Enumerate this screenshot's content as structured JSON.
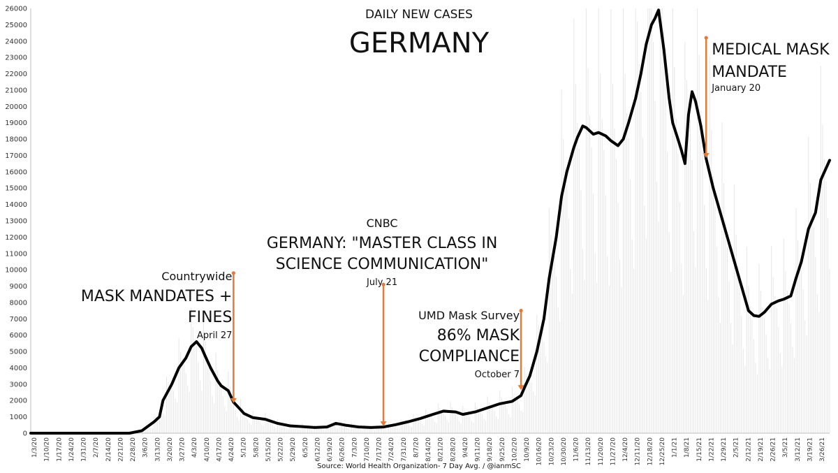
{
  "chart_data": {
    "type": "line",
    "title": "GERMANY",
    "subtitle": "DAILY NEW CASES",
    "source": "Source: World Health Organization- 7 Day Avg. / @ianmSC",
    "xlabel": "",
    "ylabel": "",
    "ylim": [
      0,
      26000
    ],
    "yticks": [
      0,
      1000,
      2000,
      3000,
      4000,
      5000,
      6000,
      7000,
      8000,
      9000,
      10000,
      11000,
      12000,
      13000,
      14000,
      15000,
      16000,
      17000,
      18000,
      19000,
      20000,
      21000,
      22000,
      23000,
      24000,
      25000,
      26000
    ],
    "x_range": [
      "2020-01-03",
      "2021-03-31"
    ],
    "xtick_labels": [
      "1/3/20",
      "1/10/20",
      "1/17/20",
      "1/24/20",
      "1/31/20",
      "2/7/20",
      "2/14/20",
      "2/21/20",
      "2/28/20",
      "3/6/20",
      "3/13/20",
      "3/20/20",
      "3/27/20",
      "4/3/20",
      "4/10/20",
      "4/17/20",
      "4/24/20",
      "5/1/20",
      "5/8/20",
      "5/15/20",
      "5/22/20",
      "5/29/20",
      "6/5/20",
      "6/12/20",
      "6/19/20",
      "6/26/20",
      "7/3/20",
      "7/10/20",
      "7/17/20",
      "7/24/20",
      "7/31/20",
      "8/7/20",
      "8/14/20",
      "8/21/20",
      "8/28/20",
      "9/4/20",
      "9/11/20",
      "9/18/20",
      "9/25/20",
      "10/2/20",
      "10/9/20",
      "10/16/20",
      "10/23/20",
      "10/30/20",
      "11/6/20",
      "11/13/20",
      "11/20/20",
      "11/27/20",
      "12/4/20",
      "12/11/20",
      "12/18/20",
      "12/25/20",
      "1/1/21",
      "1/8/21",
      "1/15/21",
      "1/22/21",
      "1/29/21",
      "2/5/21",
      "2/12/21",
      "2/19/21",
      "2/26/21",
      "3/5/21",
      "3/12/21",
      "3/19/21",
      "3/26/21"
    ],
    "grid": false,
    "series": [
      {
        "name": "",
        "color": "#000000",
        "points": [
          [
            "2020-01-03",
            0
          ],
          [
            "2020-02-28",
            0
          ],
          [
            "2020-03-06",
            150
          ],
          [
            "2020-03-13",
            700
          ],
          [
            "2020-03-16",
            1000
          ],
          [
            "2020-03-18",
            2000
          ],
          [
            "2020-03-23",
            3000
          ],
          [
            "2020-03-27",
            4000
          ],
          [
            "2020-03-31",
            4600
          ],
          [
            "2020-04-03",
            5300
          ],
          [
            "2020-04-06",
            5600
          ],
          [
            "2020-04-09",
            5200
          ],
          [
            "2020-04-11",
            4700
          ],
          [
            "2020-04-14",
            4000
          ],
          [
            "2020-04-18",
            3200
          ],
          [
            "2020-04-20",
            2900
          ],
          [
            "2020-04-24",
            2600
          ],
          [
            "2020-04-27",
            1900
          ],
          [
            "2020-05-03",
            1200
          ],
          [
            "2020-05-08",
            950
          ],
          [
            "2020-05-15",
            850
          ],
          [
            "2020-05-22",
            600
          ],
          [
            "2020-05-29",
            450
          ],
          [
            "2020-06-05",
            400
          ],
          [
            "2020-06-12",
            350
          ],
          [
            "2020-06-19",
            380
          ],
          [
            "2020-06-24",
            600
          ],
          [
            "2020-06-30",
            480
          ],
          [
            "2020-07-07",
            380
          ],
          [
            "2020-07-14",
            350
          ],
          [
            "2020-07-21",
            380
          ],
          [
            "2020-07-28",
            520
          ],
          [
            "2020-08-04",
            700
          ],
          [
            "2020-08-11",
            900
          ],
          [
            "2020-08-18",
            1150
          ],
          [
            "2020-08-24",
            1350
          ],
          [
            "2020-08-31",
            1300
          ],
          [
            "2020-09-04",
            1150
          ],
          [
            "2020-09-11",
            1300
          ],
          [
            "2020-09-18",
            1550
          ],
          [
            "2020-09-25",
            1800
          ],
          [
            "2020-10-02",
            1950
          ],
          [
            "2020-10-07",
            2300
          ],
          [
            "2020-10-09",
            2800
          ],
          [
            "2020-10-12",
            3500
          ],
          [
            "2020-10-16",
            5000
          ],
          [
            "2020-10-20",
            7000
          ],
          [
            "2020-10-23",
            9500
          ],
          [
            "2020-10-27",
            12000
          ],
          [
            "2020-10-30",
            14500
          ],
          [
            "2020-11-02",
            16000
          ],
          [
            "2020-11-06",
            17500
          ],
          [
            "2020-11-08",
            18100
          ],
          [
            "2020-11-11",
            18800
          ],
          [
            "2020-11-13",
            18700
          ],
          [
            "2020-11-17",
            18300
          ],
          [
            "2020-11-20",
            18400
          ],
          [
            "2020-11-24",
            18200
          ],
          [
            "2020-11-27",
            17900
          ],
          [
            "2020-12-01",
            17600
          ],
          [
            "2020-12-04",
            18000
          ],
          [
            "2020-12-07",
            19000
          ],
          [
            "2020-12-11",
            20500
          ],
          [
            "2020-12-14",
            22000
          ],
          [
            "2020-12-17",
            23800
          ],
          [
            "2020-12-20",
            25000
          ],
          [
            "2020-12-22",
            25400
          ],
          [
            "2020-12-24",
            25900
          ],
          [
            "2020-12-27",
            23500
          ],
          [
            "2020-12-30",
            20500
          ],
          [
            "2021-01-01",
            19000
          ],
          [
            "2021-01-04",
            18000
          ],
          [
            "2021-01-06",
            17300
          ],
          [
            "2021-01-08",
            16500
          ],
          [
            "2021-01-10",
            19500
          ],
          [
            "2021-01-12",
            20900
          ],
          [
            "2021-01-14",
            20300
          ],
          [
            "2021-01-17",
            18800
          ],
          [
            "2021-01-20",
            16800
          ],
          [
            "2021-01-24",
            15000
          ],
          [
            "2021-01-28",
            13500
          ],
          [
            "2021-02-01",
            12000
          ],
          [
            "2021-02-05",
            10500
          ],
          [
            "2021-02-09",
            9000
          ],
          [
            "2021-02-13",
            7500
          ],
          [
            "2021-02-16",
            7200
          ],
          [
            "2021-02-19",
            7150
          ],
          [
            "2021-02-22",
            7400
          ],
          [
            "2021-02-26",
            7900
          ],
          [
            "2021-03-02",
            8100
          ],
          [
            "2021-03-05",
            8200
          ],
          [
            "2021-03-09",
            8400
          ],
          [
            "2021-03-12",
            9500
          ],
          [
            "2021-03-15",
            10500
          ],
          [
            "2021-03-19",
            12500
          ],
          [
            "2021-03-23",
            13500
          ],
          [
            "2021-03-26",
            15500
          ],
          [
            "2021-03-31",
            16700
          ]
        ]
      }
    ],
    "annotations": [
      {
        "lines_small": [
          "Countrywide"
        ],
        "lines_large": [
          "MASK MANDATES +",
          "FINES"
        ],
        "date_label": "April 27",
        "date": "2020-04-27",
        "value": 1800,
        "color": "#e07b39"
      },
      {
        "lines_small": [
          "CNBC"
        ],
        "lines_large": [
          "GERMANY: \"MASTER CLASS IN",
          "SCIENCE COMMUNICATION\""
        ],
        "date_label": "July 21",
        "date": "2020-07-21",
        "value": 380,
        "color": "#e07b39"
      },
      {
        "lines_small": [
          "UMD Mask Survey"
        ],
        "lines_large": [
          "86% MASK",
          "COMPLIANCE"
        ],
        "date_label": "October 7",
        "date": "2020-10-07",
        "value": 2600,
        "color": "#e07b39"
      },
      {
        "lines_small": [],
        "lines_large": [
          "MEDICAL MASK",
          "MANDATE"
        ],
        "date_label": "January 20",
        "date": "2021-01-20",
        "value": 16800,
        "color": "#e07b39"
      }
    ]
  }
}
